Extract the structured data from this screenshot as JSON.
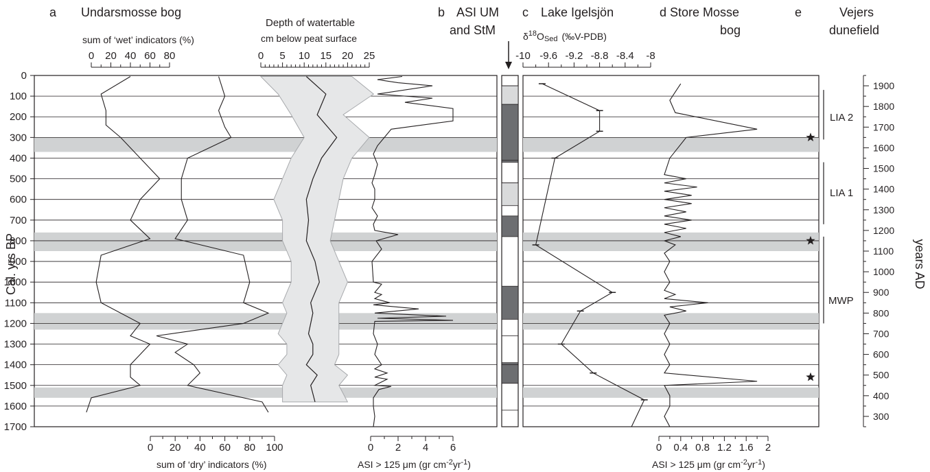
{
  "panels": {
    "a": {
      "letter": "a",
      "title": "Undarsmosse bog"
    },
    "b": {
      "letter": "b",
      "title_line1": "ASI UM",
      "title_line2": "and StM"
    },
    "c": {
      "letter": "c",
      "title": "Lake Igelsjön"
    },
    "d": {
      "letter": "d",
      "title_line1": "Store Mosse",
      "title_line2": "bog"
    },
    "e": {
      "letter": "e",
      "title_line1": "Vejers",
      "title_line2": "dunefield"
    }
  },
  "labels": {
    "wet_axis": "sum of ‘wet’ indicators (%)",
    "dry_axis": "sum of ‘dry’ indicators (%)",
    "watertable_line1": "Depth of watertable",
    "watertable_line2": "cm below peat surface",
    "asi_axis_prefix": "ASI > 125 μm (gr cm",
    "asi_axis_sup1": "-2",
    "asi_axis_mid": "yr",
    "asi_axis_sup2": "-1",
    "asi_axis_suffix": ")",
    "d18o_delta": "δ",
    "d18o_sup": "18",
    "d18o_main": "O",
    "d18o_sub": "Sed",
    "d18o_unit": "(‰V-PDB)",
    "left_axis": "Cal. yrs BP",
    "right_axis": "years AD",
    "period_lia2": "LIA 2",
    "period_lia1": "LIA 1",
    "period_mwp": "MWP"
  },
  "chart_data": {
    "type": "line",
    "y_axis": {
      "label": "Cal. yrs BP",
      "lim": [
        0,
        1700
      ],
      "ticks": [
        0,
        100,
        200,
        300,
        400,
        500,
        600,
        700,
        800,
        900,
        1000,
        1100,
        1200,
        1300,
        1400,
        1500,
        1600,
        1700
      ]
    },
    "right_axis": {
      "label": "years AD",
      "ticks": [
        1900,
        1800,
        1700,
        1600,
        1500,
        1400,
        1300,
        1200,
        1100,
        1000,
        900,
        800,
        700,
        600,
        500,
        400,
        300
      ]
    },
    "x_axes": {
      "wet": {
        "lim": [
          0,
          80
        ],
        "ticks": [
          "0",
          "20",
          "40",
          "60",
          "80"
        ]
      },
      "dry": {
        "lim": [
          0,
          100
        ],
        "ticks": [
          "0",
          "20",
          "40",
          "60",
          "80",
          "100"
        ]
      },
      "watertable": {
        "lim": [
          0,
          25
        ],
        "ticks": [
          "0",
          "5",
          "10",
          "15",
          "20",
          "25"
        ]
      },
      "asi_um": {
        "lim": [
          0,
          6
        ],
        "ticks": [
          "0",
          "2",
          "4",
          "6"
        ]
      },
      "d18o": {
        "lim": [
          -10,
          -8
        ],
        "ticks": [
          "-10",
          "-9.6",
          "-9.2",
          "-8.8",
          "-8.4",
          "-8"
        ]
      },
      "asi_stm": {
        "lim": [
          0,
          2
        ],
        "ticks": [
          "0",
          "0.4",
          "0.8",
          "1.2",
          "1.6",
          "2"
        ]
      }
    },
    "shaded_bands_bp": [
      [
        300,
        370
      ],
      [
        760,
        850
      ],
      [
        1150,
        1230
      ],
      [
        1510,
        1560
      ]
    ],
    "series": {
      "wet": [
        [
          40,
          5
        ],
        [
          10,
          90
        ],
        [
          15,
          170
        ],
        [
          15,
          240
        ],
        [
          30,
          300
        ],
        [
          50,
          400
        ],
        [
          70,
          500
        ],
        [
          50,
          600
        ],
        [
          40,
          700
        ],
        [
          60,
          790
        ],
        [
          10,
          870
        ],
        [
          5,
          1000
        ],
        [
          10,
          1100
        ],
        [
          50,
          1200
        ],
        [
          40,
          1260
        ],
        [
          60,
          1300
        ],
        [
          50,
          1350
        ],
        [
          40,
          1400
        ],
        [
          40,
          1460
        ],
        [
          50,
          1500
        ],
        [
          0,
          1560
        ],
        [
          -5,
          1630
        ]
      ],
      "dry": [
        [
          55,
          5
        ],
        [
          60,
          100
        ],
        [
          55,
          170
        ],
        [
          60,
          250
        ],
        [
          65,
          300
        ],
        [
          30,
          400
        ],
        [
          25,
          500
        ],
        [
          25,
          600
        ],
        [
          30,
          700
        ],
        [
          20,
          790
        ],
        [
          75,
          870
        ],
        [
          80,
          1000
        ],
        [
          75,
          1100
        ],
        [
          95,
          1150
        ],
        [
          75,
          1200
        ],
        [
          5,
          1260
        ],
        [
          30,
          1300
        ],
        [
          20,
          1340
        ],
        [
          35,
          1400
        ],
        [
          40,
          1440
        ],
        [
          30,
          1500
        ],
        [
          90,
          1580
        ],
        [
          95,
          1630
        ]
      ],
      "watertable": [
        {
          "depth": 5,
          "low": 0,
          "high": 21
        },
        {
          "depth": 90,
          "low": 4,
          "high": 26
        },
        {
          "depth": 190,
          "low": 7,
          "high": 19
        },
        {
          "depth": 300,
          "low": 10,
          "high": 25
        },
        {
          "depth": 400,
          "low": 7,
          "high": 21
        },
        {
          "depth": 500,
          "low": 5,
          "high": 19
        },
        {
          "depth": 600,
          "low": 3,
          "high": 18
        },
        {
          "depth": 700,
          "low": 5,
          "high": 17
        },
        {
          "depth": 800,
          "low": 5,
          "high": 16
        },
        {
          "depth": 900,
          "low": 7,
          "high": 18
        },
        {
          "depth": 1000,
          "low": 7,
          "high": 20
        },
        {
          "depth": 1100,
          "low": 5,
          "high": 18
        },
        {
          "depth": 1150,
          "low": 6,
          "high": 18
        },
        {
          "depth": 1200,
          "low": 5,
          "high": 18
        },
        {
          "depth": 1250,
          "low": 4,
          "high": 18
        },
        {
          "depth": 1300,
          "low": 6,
          "high": 18
        },
        {
          "depth": 1350,
          "low": 6,
          "high": 18
        },
        {
          "depth": 1400,
          "low": 4,
          "high": 17
        },
        {
          "depth": 1450,
          "low": 6,
          "high": 20
        },
        {
          "depth": 1500,
          "low": 5,
          "high": 18
        },
        {
          "depth": 1580,
          "low": 5,
          "high": 20
        }
      ],
      "asi_um": [
        [
          2.3,
          5
        ],
        [
          0.5,
          20
        ],
        [
          2,
          35
        ],
        [
          4.5,
          50
        ],
        [
          0.5,
          90
        ],
        [
          4.5,
          110
        ],
        [
          2.5,
          130
        ],
        [
          6,
          160
        ],
        [
          6,
          220
        ],
        [
          1.5,
          260
        ],
        [
          1,
          300
        ],
        [
          0.5,
          340
        ],
        [
          0.2,
          380
        ],
        [
          0.5,
          430
        ],
        [
          0.3,
          480
        ],
        [
          0.1,
          520
        ],
        [
          0.3,
          550
        ],
        [
          0.3,
          600
        ],
        [
          0.1,
          640
        ],
        [
          0.5,
          680
        ],
        [
          0.2,
          720
        ],
        [
          0.3,
          750
        ],
        [
          2,
          770
        ],
        [
          0.4,
          800
        ],
        [
          0.8,
          840
        ],
        [
          0.1,
          900
        ],
        [
          0.2,
          1000
        ],
        [
          0.8,
          1010
        ],
        [
          0.3,
          1050
        ],
        [
          0.8,
          1060
        ],
        [
          0.3,
          1080
        ],
        [
          1.4,
          1100
        ],
        [
          0.2,
          1110
        ],
        [
          3.5,
          1130
        ],
        [
          0.3,
          1150
        ],
        [
          5.5,
          1165
        ],
        [
          0.5,
          1175
        ],
        [
          6,
          1185
        ],
        [
          0.3,
          1190
        ],
        [
          0.2,
          1250
        ],
        [
          0.5,
          1300
        ],
        [
          0.3,
          1350
        ],
        [
          0.8,
          1400
        ],
        [
          0.3,
          1420
        ],
        [
          1.2,
          1440
        ],
        [
          0.3,
          1460
        ],
        [
          1.2,
          1470
        ],
        [
          0.3,
          1500
        ],
        [
          1.5,
          1505
        ],
        [
          0.6,
          1520
        ],
        [
          0.2,
          1560
        ],
        [
          0.2,
          1600
        ],
        [
          0.3,
          1650
        ],
        [
          0.2,
          1700
        ]
      ],
      "d18o": [
        [
          -9.7,
          40
        ],
        [
          -8.8,
          170
        ],
        [
          -8.8,
          270
        ],
        [
          -9.5,
          400
        ],
        [
          -9.8,
          820
        ],
        [
          -8.6,
          1050
        ],
        [
          -9.1,
          1140
        ],
        [
          -9.4,
          1300
        ],
        [
          -8.9,
          1440
        ],
        [
          -8.1,
          1570
        ],
        [
          -8.3,
          1700
        ]
      ],
      "asi_stm": [
        [
          0.4,
          40
        ],
        [
          0.2,
          120
        ],
        [
          0.3,
          180
        ],
        [
          1.8,
          260
        ],
        [
          0.5,
          300
        ],
        [
          0.2,
          400
        ],
        [
          0.1,
          480
        ],
        [
          0.5,
          500
        ],
        [
          0.1,
          520
        ],
        [
          0.7,
          540
        ],
        [
          0.1,
          560
        ],
        [
          0.6,
          580
        ],
        [
          0.1,
          600
        ],
        [
          0.6,
          620
        ],
        [
          0.1,
          640
        ],
        [
          0.5,
          660
        ],
        [
          0.1,
          680
        ],
        [
          0.6,
          700
        ],
        [
          0.1,
          720
        ],
        [
          0.5,
          740
        ],
        [
          0.1,
          760
        ],
        [
          0.4,
          780
        ],
        [
          0.1,
          800
        ],
        [
          0.3,
          820
        ],
        [
          0.1,
          860
        ],
        [
          0.2,
          900
        ],
        [
          0.1,
          950
        ],
        [
          0.2,
          1000
        ],
        [
          0.1,
          1040
        ],
        [
          0.3,
          1060
        ],
        [
          0.1,
          1080
        ],
        [
          0.9,
          1100
        ],
        [
          0.2,
          1120
        ],
        [
          0.5,
          1140
        ],
        [
          0.1,
          1160
        ],
        [
          0.2,
          1200
        ],
        [
          0.1,
          1250
        ],
        [
          0.2,
          1300
        ],
        [
          0.1,
          1350
        ],
        [
          0.2,
          1400
        ],
        [
          0.1,
          1440
        ],
        [
          1.8,
          1480
        ],
        [
          0.1,
          1500
        ],
        [
          0.2,
          1550
        ],
        [
          0.2,
          1600
        ],
        [
          0.1,
          1650
        ],
        [
          0.2,
          1700
        ]
      ]
    },
    "bar_b": {
      "white": [
        [
          0,
          50
        ],
        [
          410,
          520
        ],
        [
          1260,
          1400
        ],
        [
          1620,
          1700
        ]
      ],
      "light": [
        [
          50,
          140
        ],
        [
          520,
          630
        ]
      ],
      "dark": [
        [
          140,
          420
        ],
        [
          680,
          780
        ],
        [
          1020,
          1180
        ],
        [
          1390,
          1490
        ]
      ]
    },
    "stars_bp": [
      300,
      800,
      1460
    ],
    "periods": [
      {
        "label": "LIA 2",
        "start": 70,
        "end": 310
      },
      {
        "label": "LIA 1",
        "start": 420,
        "end": 720
      },
      {
        "label": "MWP",
        "start": 780,
        "end": 1200
      }
    ]
  }
}
